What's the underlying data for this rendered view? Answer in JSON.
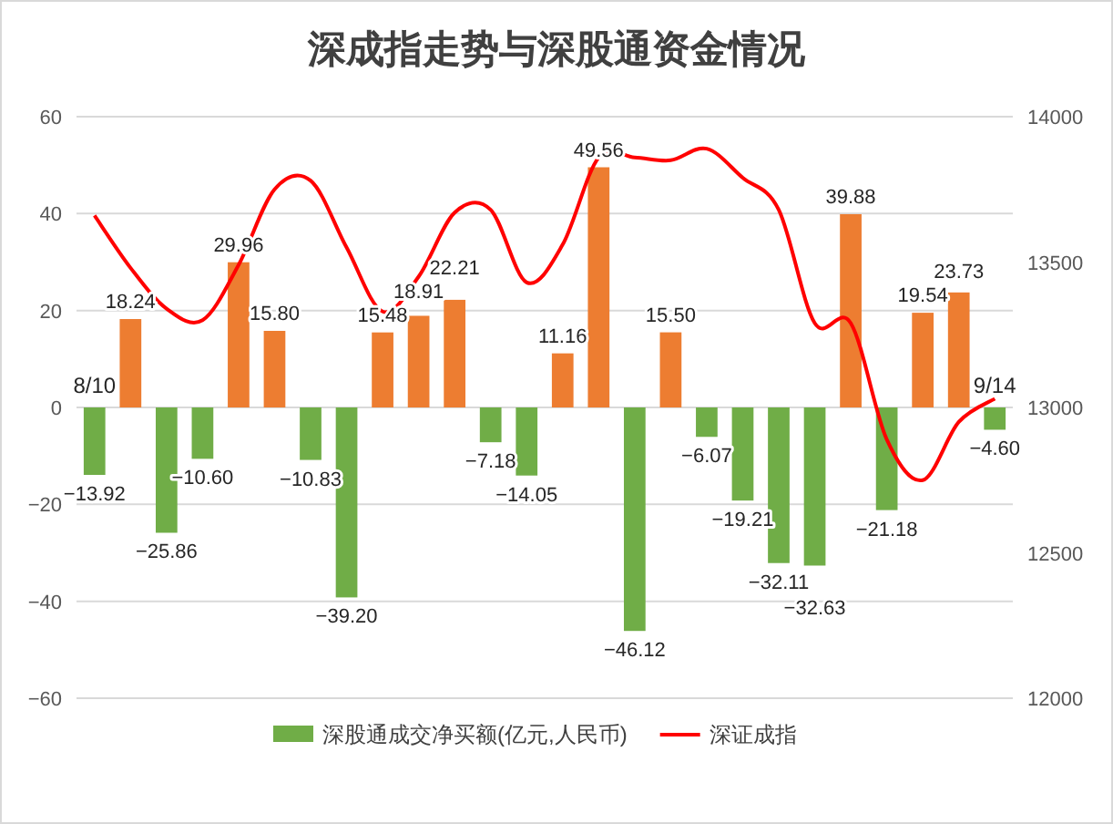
{
  "chart_data": {
    "type": "bar",
    "title": "深成指走势与深股通资金情况",
    "categories": [
      "8/10",
      null,
      null,
      null,
      null,
      null,
      null,
      null,
      null,
      null,
      null,
      null,
      null,
      null,
      null,
      null,
      null,
      null,
      null,
      null,
      null,
      null,
      null,
      null,
      null,
      "9/14"
    ],
    "series": [
      {
        "name": "深股通成交净买额(亿元,人民币)",
        "type": "bar",
        "color": "#70ad47",
        "colors": [
          "#70ad47",
          "#ed7d31",
          "#70ad47",
          "#70ad47",
          "#ed7d31",
          "#ed7d31",
          "#70ad47",
          "#70ad47",
          "#ed7d31",
          "#ed7d31",
          "#ed7d31",
          "#70ad47",
          "#70ad47",
          "#ed7d31",
          "#ed7d31",
          "#70ad47",
          "#ed7d31",
          "#70ad47",
          "#70ad47",
          "#70ad47",
          "#70ad47",
          "#ed7d31",
          "#70ad47",
          "#ed7d31",
          "#ed7d31",
          "#70ad47"
        ],
        "values": [
          -13.92,
          18.24,
          -25.86,
          -10.6,
          29.96,
          15.8,
          -10.83,
          -39.2,
          15.48,
          18.91,
          22.21,
          -7.18,
          -14.05,
          11.16,
          49.56,
          -46.12,
          15.5,
          -6.07,
          -19.21,
          -32.11,
          -32.63,
          39.88,
          -21.18,
          19.54,
          23.73,
          -4.6
        ],
        "value_labels": [
          "−13.92",
          "18.24",
          "−25.86",
          "−10.60",
          "29.96",
          "15.80",
          "−10.83",
          "−39.20",
          "15.48",
          "18.91",
          "22.21",
          "−7.18",
          "−14.05",
          "11.16",
          "49.56",
          "−46.12",
          "15.50",
          "−6.07",
          "−19.21",
          "−32.11",
          "−32.63",
          "39.88",
          "−21.18",
          "19.54",
          "23.73",
          "−4.60"
        ]
      },
      {
        "name": "深证成指",
        "type": "line",
        "axis": "y2",
        "color": "#ff0000",
        "values": [
          13660,
          13480,
          13340,
          13300,
          13490,
          13750,
          13780,
          13550,
          13330,
          13450,
          13670,
          13680,
          13430,
          13560,
          13860,
          13860,
          13850,
          13890,
          13790,
          13680,
          13290,
          13290,
          12890,
          12750,
          12950,
          13030
        ]
      }
    ],
    "ylim": [
      -60,
      60
    ],
    "yticks": [
      -60,
      -40,
      -20,
      0,
      20,
      40,
      60
    ],
    "y2lim": [
      12000,
      14000
    ],
    "y2ticks": [
      12000,
      12500,
      13000,
      13500,
      14000
    ],
    "grid": "y",
    "legend": "bottom"
  }
}
